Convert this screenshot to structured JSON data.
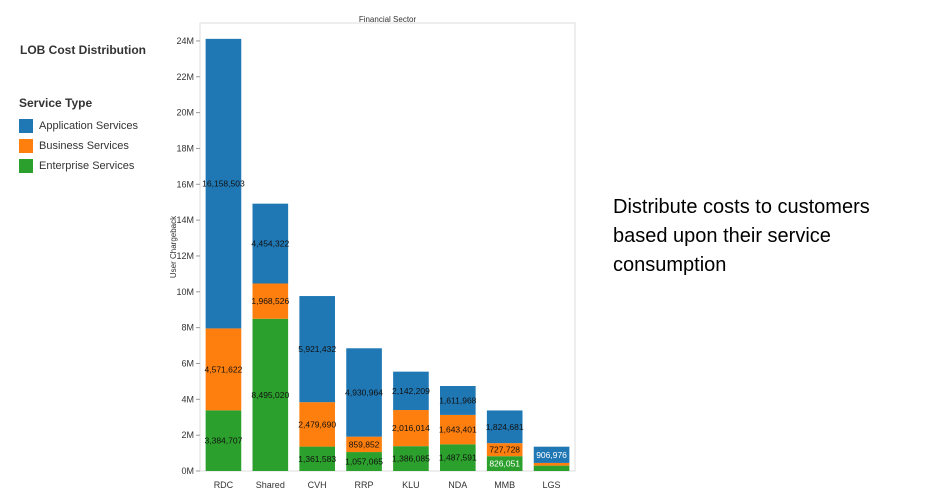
{
  "page": {
    "title": "LOB Cost Distribution",
    "note": "Distribute costs to customers based upon their service consumption"
  },
  "legend": {
    "title": "Service Type",
    "items": [
      {
        "label": "Application Services",
        "color": "#1f77b4"
      },
      {
        "label": "Business Services",
        "color": "#ff7f0e"
      },
      {
        "label": "Enterprise Services",
        "color": "#2ca02c"
      }
    ]
  },
  "chart_data": {
    "type": "bar",
    "stacked": true,
    "title": "Financial Sector",
    "xlabel": "",
    "ylabel": "User Chargeback",
    "ylim": [
      0,
      25000000
    ],
    "yticks": [
      0,
      2000000,
      4000000,
      6000000,
      8000000,
      10000000,
      12000000,
      14000000,
      16000000,
      18000000,
      20000000,
      22000000,
      24000000
    ],
    "ytick_labels": [
      "0M",
      "2M",
      "4M",
      "6M",
      "8M",
      "10M",
      "12M",
      "14M",
      "16M",
      "18M",
      "20M",
      "22M",
      "24M"
    ],
    "grid": false,
    "legend_position": "left",
    "categories": [
      "RDC",
      "Shared",
      "CVH",
      "RRP",
      "KLU",
      "NDA",
      "MMB",
      "LGS"
    ],
    "series": [
      {
        "name": "Enterprise Services",
        "color": "#2ca02c",
        "values": [
          3384707,
          8495020,
          1361583,
          1057065,
          1386085,
          1487591,
          826051,
          300000
        ],
        "labels": [
          "3,384,707",
          "8,495,020",
          "1,361,583",
          "1,057,065",
          "1,386,085",
          "1,487,591",
          "826,051",
          ""
        ]
      },
      {
        "name": "Business Services",
        "color": "#ff7f0e",
        "values": [
          4571622,
          1968526,
          2479690,
          859852,
          2016014,
          1643401,
          727728,
          150000
        ],
        "labels": [
          "4,571,622",
          "1,968,526",
          "2,479,690",
          "859,852",
          "2,016,014",
          "1,643,401",
          "727,728",
          ""
        ]
      },
      {
        "name": "Application Services",
        "color": "#1f77b4",
        "values": [
          16158503,
          4454322,
          5921432,
          4930964,
          2142209,
          1611968,
          1824681,
          906976
        ],
        "labels": [
          "16,158,503",
          "4,454,322",
          "5,921,432",
          "4,930,964",
          "2,142,209",
          "1,611,968",
          "1,824,681",
          "906,976"
        ]
      }
    ]
  }
}
